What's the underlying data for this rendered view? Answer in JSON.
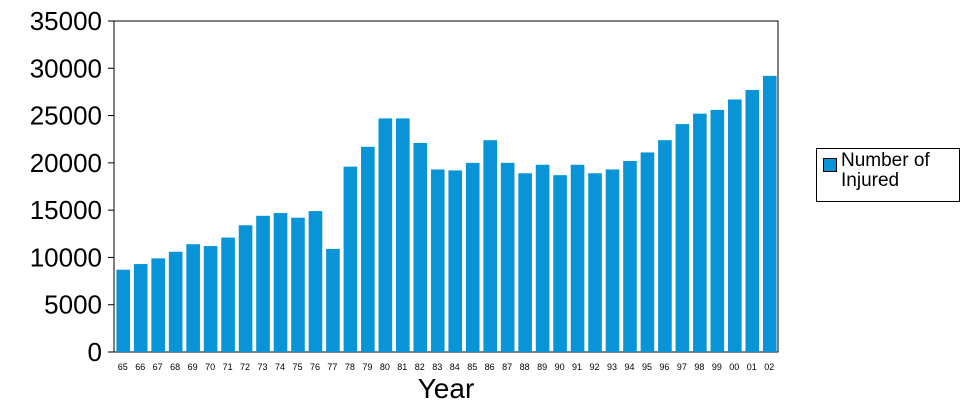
{
  "chart_data": {
    "type": "bar",
    "xlabel": "Year",
    "ylabel": "",
    "ylim": [
      0,
      35000
    ],
    "yticks": [
      0,
      5000,
      10000,
      15000,
      20000,
      25000,
      30000,
      35000
    ],
    "categories": [
      "65",
      "66",
      "67",
      "68",
      "69",
      "70",
      "71",
      "72",
      "73",
      "74",
      "75",
      "76",
      "77",
      "78",
      "79",
      "80",
      "81",
      "82",
      "83",
      "84",
      "85",
      "86",
      "87",
      "88",
      "89",
      "90",
      "91",
      "92",
      "93",
      "94",
      "95",
      "96",
      "97",
      "98",
      "99",
      "00",
      "01",
      "02"
    ],
    "series": [
      {
        "name": "Number of Injured",
        "color": "#0a94d8",
        "values": [
          8700,
          9300,
          9900,
          10600,
          11400,
          11200,
          12100,
          13400,
          14400,
          14700,
          14200,
          14900,
          10900,
          19600,
          21700,
          24700,
          24700,
          22100,
          19300,
          19200,
          20000,
          22400,
          20000,
          18900,
          19800,
          18700,
          19800,
          18900,
          19300,
          20200,
          21100,
          22400,
          24100,
          25200,
          25600,
          26700,
          27700,
          29200
        ]
      }
    ],
    "legend": {
      "position": "right",
      "label": "Number of Injured"
    },
    "grid": false
  }
}
